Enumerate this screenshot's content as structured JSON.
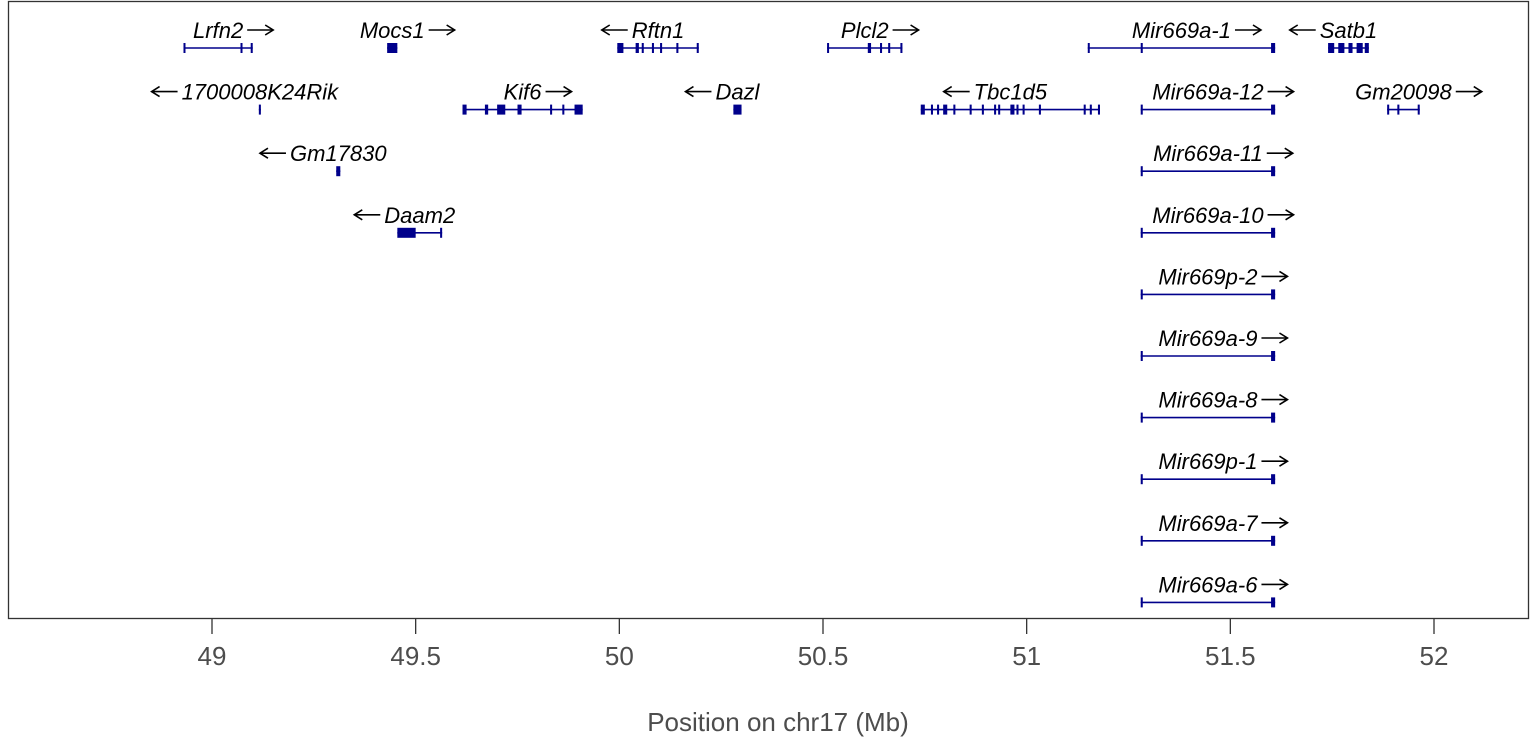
{
  "chart_data": {
    "type": "gene-track",
    "xlabel": "Position on chr17 (Mb)",
    "xlim": [
      48.5,
      52.25
    ],
    "ticks": [
      49,
      49.5,
      50,
      50.5,
      51,
      51.5,
      52
    ],
    "tick_labels": [
      "49",
      "49.5",
      "50",
      "50.5",
      "51",
      "51.5",
      "52"
    ],
    "gene_color": "#00008b",
    "genes": [
      {
        "name": "Lrfn2",
        "strand": "+",
        "row": 0,
        "start": 48.93,
        "end": 49.1,
        "exons": [
          [
            48.93,
            48.934
          ],
          [
            49.07,
            49.074
          ],
          [
            49.095,
            49.1
          ]
        ]
      },
      {
        "name": "Mocs1",
        "strand": "+",
        "row": 0,
        "start": 49.43,
        "end": 49.455,
        "exons": [
          [
            49.43,
            49.455
          ]
        ]
      },
      {
        "name": "Rftn1",
        "strand": "-",
        "row": 0,
        "start": 49.995,
        "end": 50.195,
        "exons": [
          [
            49.995,
            50.01
          ],
          [
            50.04,
            50.048
          ],
          [
            50.055,
            50.06
          ],
          [
            50.08,
            50.085
          ],
          [
            50.1,
            50.105
          ],
          [
            50.14,
            50.145
          ],
          [
            50.19,
            50.195
          ]
        ]
      },
      {
        "name": "Plcl2",
        "strand": "+",
        "row": 0,
        "start": 50.51,
        "end": 50.695,
        "exons": [
          [
            50.51,
            50.514
          ],
          [
            50.61,
            50.618
          ],
          [
            50.64,
            50.645
          ],
          [
            50.66,
            50.665
          ],
          [
            50.69,
            50.695
          ]
        ]
      },
      {
        "name": "Mir669a-1",
        "strand": "+",
        "row": 0,
        "start": 51.15,
        "end": 51.61,
        "exons": [
          [
            51.15,
            51.154
          ],
          [
            51.28,
            51.285
          ],
          [
            51.6,
            51.61
          ]
        ]
      },
      {
        "name": "Satb1",
        "strand": "-",
        "row": 0,
        "start": 51.74,
        "end": 51.84,
        "exons": [
          [
            51.74,
            51.755
          ],
          [
            51.765,
            51.78
          ],
          [
            51.79,
            51.8
          ],
          [
            51.81,
            51.825
          ],
          [
            51.83,
            51.84
          ]
        ]
      },
      {
        "name": "1700008K24Rik",
        "strand": "-",
        "row": 1,
        "start": 49.115,
        "end": 49.12,
        "exons": [
          [
            49.115,
            49.12
          ]
        ]
      },
      {
        "name": "Kif6",
        "strand": "+",
        "row": 1,
        "start": 49.615,
        "end": 49.91,
        "exons": [
          [
            49.615,
            49.625
          ],
          [
            49.67,
            49.678
          ],
          [
            49.7,
            49.72
          ],
          [
            49.75,
            49.76
          ],
          [
            49.83,
            49.835
          ],
          [
            49.86,
            49.865
          ],
          [
            49.89,
            49.91
          ]
        ]
      },
      {
        "name": "Dazl",
        "strand": "-",
        "row": 1,
        "start": 50.28,
        "end": 50.3,
        "exons": [
          [
            50.28,
            50.3
          ]
        ]
      },
      {
        "name": "Tbc1d5",
        "strand": "-",
        "row": 1,
        "start": 50.74,
        "end": 51.18,
        "exons": [
          [
            50.74,
            50.75
          ],
          [
            50.765,
            50.77
          ],
          [
            50.78,
            50.785
          ],
          [
            50.795,
            50.805
          ],
          [
            50.82,
            50.825
          ],
          [
            50.86,
            50.865
          ],
          [
            50.89,
            50.895
          ],
          [
            50.92,
            50.925
          ],
          [
            50.93,
            50.935
          ],
          [
            50.96,
            50.97
          ],
          [
            50.975,
            50.98
          ],
          [
            50.99,
            50.995
          ],
          [
            51.03,
            51.035
          ],
          [
            51.14,
            51.145
          ],
          [
            51.155,
            51.16
          ],
          [
            51.175,
            51.18
          ]
        ]
      },
      {
        "name": "Mir669a-12",
        "strand": "+",
        "row": 1,
        "start": 51.28,
        "end": 51.61,
        "exons": [
          [
            51.28,
            51.285
          ],
          [
            51.6,
            51.61
          ]
        ]
      },
      {
        "name": "Gm20098",
        "strand": "+",
        "row": 1,
        "start": 51.885,
        "end": 51.965,
        "exons": [
          [
            51.885,
            51.89
          ],
          [
            51.91,
            51.915
          ],
          [
            51.96,
            51.965
          ]
        ]
      },
      {
        "name": "Gm17830",
        "strand": "-",
        "row": 2,
        "start": 49.305,
        "end": 49.315,
        "exons": [
          [
            49.305,
            49.315
          ]
        ]
      },
      {
        "name": "Mir669a-11",
        "strand": "+",
        "row": 2,
        "start": 51.28,
        "end": 51.61,
        "exons": [
          [
            51.28,
            51.285
          ],
          [
            51.6,
            51.61
          ]
        ]
      },
      {
        "name": "Daam2",
        "strand": "-",
        "row": 3,
        "start": 49.455,
        "end": 49.565,
        "exons": [
          [
            49.455,
            49.5
          ],
          [
            49.56,
            49.565
          ]
        ]
      },
      {
        "name": "Mir669a-10",
        "strand": "+",
        "row": 3,
        "start": 51.28,
        "end": 51.61,
        "exons": [
          [
            51.28,
            51.285
          ],
          [
            51.6,
            51.61
          ]
        ]
      },
      {
        "name": "Mir669p-2",
        "strand": "+",
        "row": 4,
        "start": 51.28,
        "end": 51.61,
        "exons": [
          [
            51.28,
            51.285
          ],
          [
            51.6,
            51.61
          ]
        ]
      },
      {
        "name": "Mir669a-9",
        "strand": "+",
        "row": 5,
        "start": 51.28,
        "end": 51.61,
        "exons": [
          [
            51.28,
            51.285
          ],
          [
            51.6,
            51.61
          ]
        ]
      },
      {
        "name": "Mir669a-8",
        "strand": "+",
        "row": 6,
        "start": 51.28,
        "end": 51.61,
        "exons": [
          [
            51.28,
            51.285
          ],
          [
            51.6,
            51.61
          ]
        ]
      },
      {
        "name": "Mir669p-1",
        "strand": "+",
        "row": 7,
        "start": 51.28,
        "end": 51.61,
        "exons": [
          [
            51.28,
            51.285
          ],
          [
            51.6,
            51.61
          ]
        ]
      },
      {
        "name": "Mir669a-7",
        "strand": "+",
        "row": 8,
        "start": 51.28,
        "end": 51.61,
        "exons": [
          [
            51.28,
            51.285
          ],
          [
            51.6,
            51.61
          ]
        ]
      },
      {
        "name": "Mir669a-6",
        "strand": "+",
        "row": 9,
        "start": 51.28,
        "end": 51.61,
        "exons": [
          [
            51.28,
            51.285
          ],
          [
            51.6,
            51.61
          ]
        ]
      }
    ]
  }
}
